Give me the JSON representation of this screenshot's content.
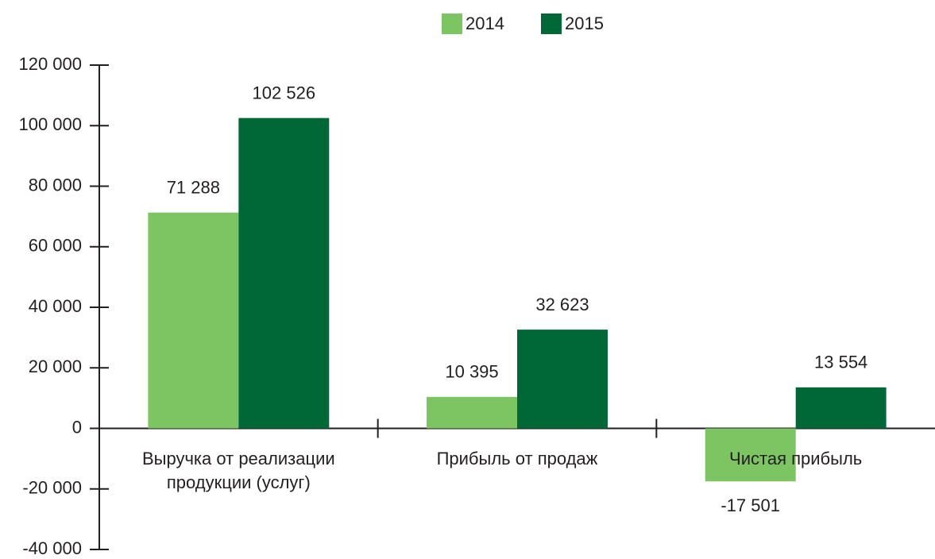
{
  "chart_data": {
    "type": "bar",
    "categories": [
      "Выручка от реализации продукции (услуг)",
      "Прибыль от продаж",
      "Чистая прибыль"
    ],
    "series": [
      {
        "name": "2014",
        "color": "#7dc462",
        "values": [
          71288,
          10395,
          -17501
        ],
        "value_labels": [
          "71 288",
          "10 395",
          "-17 501"
        ]
      },
      {
        "name": "2015",
        "color": "#006837",
        "values": [
          102526,
          32623,
          13554
        ],
        "value_labels": [
          "102 526",
          "32 623",
          "13 554"
        ]
      }
    ],
    "ylim": [
      -40000,
      120000
    ],
    "yticks": [
      {
        "value": -40000,
        "label": "-40 000"
      },
      {
        "value": -20000,
        "label": "-20 000"
      },
      0,
      {
        "value": 20000,
        "label": "20 000"
      },
      {
        "value": 40000,
        "label": "40 000"
      },
      {
        "value": 60000,
        "label": "60 000"
      },
      {
        "value": 80000,
        "label": "80 000"
      },
      {
        "value": 100000,
        "label": "100 000"
      },
      {
        "value": 120000,
        "label": "120 000"
      }
    ],
    "legend": "top"
  }
}
